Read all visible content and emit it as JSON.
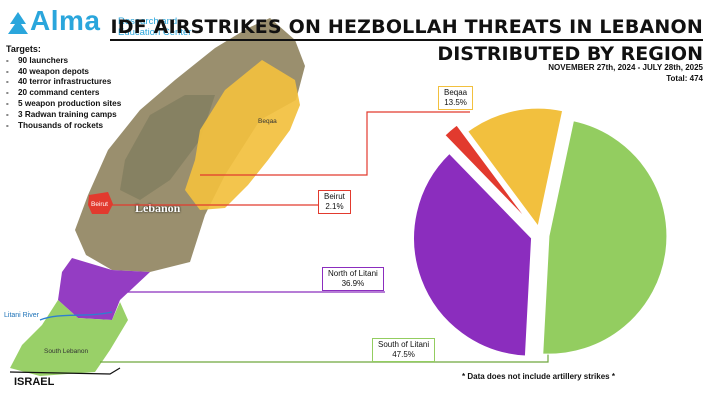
{
  "logo": {
    "name": "Alma",
    "subtitle_line1": "Research and",
    "subtitle_line2": "Education Center"
  },
  "targets": {
    "heading": "Targets:",
    "items": [
      "90 launchers",
      "40 weapon depots",
      "40 terror infrastructures",
      "20 command centers",
      "5 weapon production sites",
      "3 Radwan training camps",
      "Thousands of rockets"
    ]
  },
  "header": {
    "title_line1": "IDF AIRSTRIKES ON HEZBOLLAH THREATS IN LEBANON",
    "title_line2": "DISTRIBUTED BY REGION",
    "dates": "NOVEMBER 27th, 2024 - JULY 28th, 2025",
    "total": "Total: 474"
  },
  "map": {
    "country_label": "Lebanon",
    "region_labels": {
      "beqaa": "Beqaa",
      "beirut": "Beirut",
      "south": "South Lebanon"
    },
    "river_label": "Litani River",
    "border_label": "ISRAEL"
  },
  "footnote": "*  Data does not include artillery strikes  *",
  "colors": {
    "south": "#93cd60",
    "north": "#8b2dbe",
    "beirut": "#e23a2e",
    "beqaa": "#f2c03e",
    "accent": "#2aa6dc"
  },
  "chart_data": {
    "type": "pie",
    "title": "IDF AIRSTRIKES ON HEZBOLLAH THREATS IN LEBANON DISTRIBUTED BY REGION",
    "exploded": true,
    "total": 474,
    "slices": [
      {
        "name": "South of Litani",
        "value": 47.5,
        "label": "47.5%",
        "color": "#93cd60"
      },
      {
        "name": "North of Litani",
        "value": 36.9,
        "label": "36.9%",
        "color": "#8b2dbe"
      },
      {
        "name": "Beirut",
        "value": 2.1,
        "label": "2.1%",
        "color": "#e23a2e"
      },
      {
        "name": "Beqaa",
        "value": 13.5,
        "label": "13.5%",
        "color": "#f2c03e"
      }
    ]
  }
}
